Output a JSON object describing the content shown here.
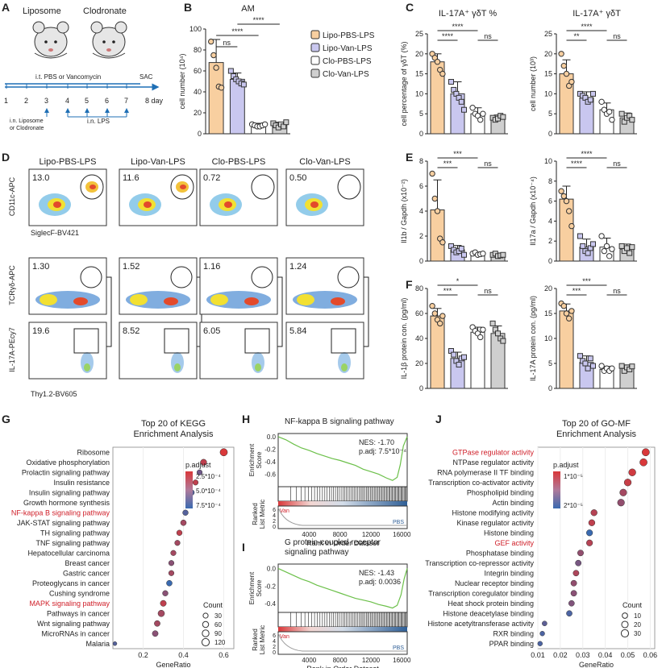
{
  "panel_letters": [
    "A",
    "B",
    "C",
    "D",
    "E",
    "F",
    "G",
    "H",
    "I",
    "J"
  ],
  "panelA": {
    "group1": "Liposome",
    "group2": "Clodronate",
    "treatment": "i.t. PBS or Vancomycin",
    "days": [
      "1",
      "2",
      "3",
      "4",
      "5",
      "6",
      "7",
      "8 day"
    ],
    "sac": "SAC",
    "liposome_step": "i.n. Liposome\nor Clodronate",
    "lps_step": "i.n. LPS"
  },
  "legend": {
    "items": [
      {
        "label": "Lipo-PBS-LPS",
        "color": "#f8cfa0"
      },
      {
        "label": "Lipo-Van-LPS",
        "color": "#c9c7ef"
      },
      {
        "label": "Clo-PBS-LPS",
        "color": "#ffffff"
      },
      {
        "label": "Clo-Van-LPS",
        "color": "#cfcfcf"
      }
    ]
  },
  "chart_data": [
    {
      "id": "B",
      "type": "bar",
      "title": "AM",
      "ylabel": "cell number (10⁴)",
      "ylim": [
        0,
        100
      ],
      "ticks": [
        0,
        20,
        40,
        60,
        80,
        100
      ],
      "categories": [
        "Lipo-PBS-LPS",
        "Lipo-Van-LPS",
        "Clo-PBS-LPS",
        "Clo-Van-LPS"
      ],
      "values": [
        68,
        52,
        8,
        8
      ],
      "errors": [
        22,
        6,
        2,
        3
      ],
      "points": [
        [
          88,
          75,
          63,
          45,
          44
        ],
        [
          60,
          55,
          52,
          50,
          48,
          47
        ],
        [
          9,
          8,
          7,
          7,
          8,
          9
        ],
        [
          10,
          8,
          6,
          9,
          7,
          11
        ]
      ],
      "signif": [
        {
          "a": 0,
          "b": 1,
          "label": "ns"
        },
        {
          "a": 0,
          "b": 2,
          "label": "****"
        },
        {
          "a": 1,
          "b": 3,
          "label": "****"
        }
      ]
    },
    {
      "id": "C1",
      "type": "bar",
      "title": "IL-17A⁺ γδT %",
      "ylabel": "cell percentage of γδT (%)",
      "ylim": [
        0,
        25
      ],
      "ticks": [
        0,
        5,
        10,
        15,
        20,
        25
      ],
      "categories": [
        "Lipo-PBS-LPS",
        "Lipo-Van-LPS",
        "Clo-PBS-LPS",
        "Clo-Van-LPS"
      ],
      "values": [
        18,
        10,
        5,
        4
      ],
      "errors": [
        2,
        3,
        1.5,
        0.7
      ],
      "points": [
        [
          20,
          19,
          18,
          16,
          15
        ],
        [
          13,
          11,
          10,
          9,
          8,
          6
        ],
        [
          6.5,
          5,
          4.5,
          3.5,
          5
        ],
        [
          4,
          3.5,
          3.8,
          4.5,
          4.2
        ]
      ],
      "signif": [
        {
          "a": 0,
          "b": 1,
          "label": "****"
        },
        {
          "a": 0,
          "b": 2,
          "label": "****"
        },
        {
          "a": 2,
          "b": 3,
          "label": "ns"
        }
      ]
    },
    {
      "id": "C2",
      "type": "bar",
      "title": "IL-17A⁺ γδT",
      "ylabel": "cell number (10³)",
      "ylim": [
        0,
        25
      ],
      "ticks": [
        0,
        5,
        10,
        15,
        20,
        25
      ],
      "categories": [
        "Lipo-PBS-LPS",
        "Lipo-Van-LPS",
        "Clo-PBS-LPS",
        "Clo-Van-LPS"
      ],
      "values": [
        15,
        9,
        6,
        4
      ],
      "errors": [
        3.5,
        1.5,
        1.7,
        1.2
      ],
      "points": [
        [
          20,
          17,
          15,
          12,
          13
        ],
        [
          10,
          9.5,
          9,
          8,
          8.5,
          10
        ],
        [
          8,
          6,
          5,
          5.5,
          3.5
        ],
        [
          5,
          3,
          4,
          4.5,
          3.5
        ]
      ],
      "signif": [
        {
          "a": 0,
          "b": 1,
          "label": "**"
        },
        {
          "a": 0,
          "b": 2,
          "label": "****"
        },
        {
          "a": 2,
          "b": 3,
          "label": "ns"
        }
      ]
    },
    {
      "id": "E1",
      "type": "bar",
      "title": "",
      "ylabel": "Il1b / Gapdh (x10⁻²)",
      "ylim": [
        0,
        8
      ],
      "ticks": [
        0,
        2,
        4,
        6,
        8
      ],
      "categories": [
        "Lipo-PBS-LPS",
        "Lipo-Van-LPS",
        "Clo-PBS-LPS",
        "Clo-Van-LPS"
      ],
      "values": [
        4.1,
        0.9,
        0.6,
        0.5
      ],
      "errors": [
        2.4,
        0.35,
        0.12,
        0.15
      ],
      "points": [
        [
          7,
          5,
          4,
          1.8,
          1.5
        ],
        [
          1.2,
          0.9,
          0.7,
          0.8,
          1,
          0.5
        ],
        [
          0.6,
          0.7,
          0.5,
          0.55,
          0.6
        ],
        [
          0.5,
          0.6,
          0.4,
          0.45,
          0.5
        ]
      ],
      "signif": [
        {
          "a": 0,
          "b": 1,
          "label": "***"
        },
        {
          "a": 0,
          "b": 2,
          "label": "***"
        },
        {
          "a": 2,
          "b": 3,
          "label": "ns"
        }
      ]
    },
    {
      "id": "E2",
      "type": "bar",
      "title": "",
      "ylabel": "Il17a / Gapdh (x10⁻⁴)",
      "ylim": [
        0,
        10
      ],
      "ticks": [
        0,
        2,
        4,
        6,
        8,
        10
      ],
      "categories": [
        "Lipo-PBS-LPS",
        "Lipo-Van-LPS",
        "Clo-PBS-LPS",
        "Clo-Van-LPS"
      ],
      "values": [
        6.2,
        1.4,
        1.4,
        1.2
      ],
      "errors": [
        1.3,
        0.8,
        0.9,
        0.5
      ],
      "points": [
        [
          7,
          6.5,
          6,
          5,
          3.5
        ],
        [
          2.5,
          1.5,
          1,
          0.8,
          1.3,
          1.7
        ],
        [
          2.5,
          1,
          1.5,
          0.5,
          1.2
        ],
        [
          1.5,
          1,
          1.3,
          0.8,
          1.4
        ]
      ],
      "signif": [
        {
          "a": 0,
          "b": 1,
          "label": "****"
        },
        {
          "a": 0,
          "b": 2,
          "label": "****"
        },
        {
          "a": 2,
          "b": 3,
          "label": "ns"
        }
      ]
    },
    {
      "id": "F1",
      "type": "bar",
      "title": "",
      "ylabel": "IL-1β protein con. (pg/ml)",
      "ylim": [
        0,
        80
      ],
      "ticks": [
        0,
        20,
        40,
        60,
        80
      ],
      "categories": [
        "Lipo-PBS-LPS",
        "Lipo-Van-LPS",
        "Clo-PBS-LPS",
        "Clo-Van-LPS"
      ],
      "values": [
        58,
        24,
        45,
        44
      ],
      "errors": [
        6,
        5,
        4,
        6
      ],
      "points": [
        [
          66,
          60,
          55,
          52,
          58
        ],
        [
          30,
          27,
          22,
          19,
          24,
          25
        ],
        [
          49,
          46,
          44,
          41,
          47
        ],
        [
          52,
          47,
          44,
          40,
          38
        ]
      ],
      "signif": [
        {
          "a": 0,
          "b": 1,
          "label": "***"
        },
        {
          "a": 0,
          "b": 2,
          "label": "*"
        },
        {
          "a": 2,
          "b": 3,
          "label": "ns"
        }
      ]
    },
    {
      "id": "F2",
      "type": "bar",
      "title": "",
      "ylabel": "IL-17A protein con. (pg/ml)",
      "ylim": [
        0,
        20
      ],
      "ticks": [
        0,
        5,
        10,
        15,
        20
      ],
      "categories": [
        "Lipo-PBS-LPS",
        "Lipo-Van-LPS",
        "Clo-PBS-LPS",
        "Clo-Van-LPS"
      ],
      "values": [
        15.5,
        5.2,
        3.8,
        4
      ],
      "errors": [
        1.4,
        1.3,
        0.6,
        0.7
      ],
      "points": [
        [
          17,
          16.5,
          15,
          14,
          15.5
        ],
        [
          6.5,
          5.5,
          5,
          4,
          6,
          4.5
        ],
        [
          4.5,
          3.5,
          4,
          3.5,
          4
        ],
        [
          4.5,
          3.5,
          4.2,
          3.8,
          4.4
        ]
      ],
      "signif": [
        {
          "a": 0,
          "b": 1,
          "label": "***"
        },
        {
          "a": 0,
          "b": 2,
          "label": "***"
        },
        {
          "a": 2,
          "b": 3,
          "label": "ns"
        }
      ]
    },
    {
      "id": "G",
      "type": "scatter",
      "title": "Top 20 of KEGG\nEnrichment Analysis",
      "xlabel": "GeneRatio",
      "xlim": [
        0.05,
        0.65
      ],
      "xticks": [
        0.2,
        0.4,
        0.6
      ],
      "legend_title": "p.adjust",
      "color_ticks": [
        "2.5*10⁻⁴",
        "5.0*10⁻⁴",
        "7.5*10⁻⁴"
      ],
      "size_title": "Count",
      "size_values": [
        30,
        60,
        90,
        120
      ],
      "terms": [
        "Ribosome",
        "Oxidative phosphorylation",
        "Prolactin signaling pathway",
        "Insulin resistance",
        "Insulin signaling pathway",
        "Growth hormone synthesis",
        "NF-kappa B signaling pathway",
        "JAK-STAT signaling pathway",
        "TH signaling pathway",
        "TNF signaling pathway",
        "Hepatocellular carcinoma",
        "Breast cancer",
        "Gastric cancer",
        "Proteoglycans in cancer",
        "Cushing syndrome",
        "MAPK signaling pathway",
        "Pathways in cancer",
        "Wnt signaling pathway",
        "MicroRNAs in cancer",
        "Malaria"
      ],
      "highlight": [
        "NF-kappa B signaling pathway",
        "MAPK signaling pathway"
      ],
      "gene_ratio": [
        0.6,
        0.5,
        0.48,
        0.46,
        0.44,
        0.43,
        0.41,
        0.4,
        0.38,
        0.37,
        0.35,
        0.34,
        0.34,
        0.33,
        0.31,
        0.3,
        0.29,
        0.27,
        0.26,
        0.06
      ],
      "count": [
        120,
        70,
        40,
        40,
        50,
        45,
        45,
        50,
        45,
        40,
        40,
        40,
        40,
        50,
        45,
        60,
        80,
        55,
        55,
        10
      ],
      "p_adjust": [
        0.0001,
        0.0002,
        0.0005,
        0.0002,
        0.0006,
        0.0003,
        0.0006,
        0.0003,
        0.0002,
        0.0003,
        0.0003,
        0.0004,
        0.0003,
        0.0007,
        0.0004,
        0.0002,
        0.0003,
        0.0003,
        0.0004,
        0.0006
      ]
    },
    {
      "id": "J",
      "type": "scatter",
      "title": "Top 20 of GO-MF\nEnrichment Analysis",
      "xlabel": "GeneRatio",
      "xlim": [
        0.01,
        0.062
      ],
      "xticks": [
        0.01,
        0.02,
        0.03,
        0.04,
        0.05,
        0.06
      ],
      "legend_title": "p.adjust",
      "color_ticks": [
        "1*10⁻⁵",
        "2*10⁻⁵"
      ],
      "size_title": "Count",
      "size_values": [
        10,
        20,
        30
      ],
      "terms": [
        "GTPase regulator activity",
        "NTPase regulator activity",
        "RNA polymerase II TF binding",
        "Transcription co-activator activity",
        "Phospholipid binding",
        "Actin binding",
        "Histone modifying activity",
        "Kinase regulator activity",
        "Histone binding",
        "GEF activity",
        "Phosphatase binding",
        "Transcription co-repressor activity",
        "Integrin binding",
        "Nuclear receptor binding",
        "Transcription coregulator binding",
        "Heat shock protein binding",
        "Histone deacetylase binding",
        "Histone acetyltransferase activity",
        "RXR binding",
        "PPAR binding"
      ],
      "highlight": [
        "GTPase regulator activity",
        "GEF activity"
      ],
      "gene_ratio": [
        0.058,
        0.057,
        0.052,
        0.05,
        0.048,
        0.047,
        0.035,
        0.034,
        0.033,
        0.033,
        0.029,
        0.028,
        0.027,
        0.026,
        0.026,
        0.025,
        0.024,
        0.013,
        0.012,
        0.011
      ],
      "count": [
        30,
        30,
        27,
        26,
        25,
        25,
        18,
        18,
        17,
        17,
        15,
        14,
        14,
        14,
        14,
        13,
        13,
        7,
        6,
        6
      ],
      "p_adjust": [
        4e-06,
        4e-06,
        5e-06,
        6e-06,
        1e-05,
        1.2e-05,
        8e-06,
        7e-06,
        2.2e-05,
        8e-06,
        1.2e-05,
        1.5e-05,
        9e-06,
        1.2e-05,
        1.3e-05,
        1.4e-05,
        2e-05,
        1.8e-05,
        2e-05,
        2e-05
      ]
    },
    {
      "id": "H",
      "type": "line",
      "title": "NF-kappa B signaling pathway",
      "ylabel": "Enrichment\nScore",
      "ylim": [
        -0.8,
        0.05
      ],
      "yticks": [
        "0.0",
        "-0.2",
        "-0.4",
        "-0.6"
      ],
      "xlabel": "Rank in Order Dataset",
      "xticks": [
        "4000",
        "8000",
        "12000",
        "16000"
      ],
      "nes": "NES: -1.70",
      "padj": "p.adj: 7.5*10⁻⁴",
      "rank_label": "Ranked\nList Metric",
      "rank_ticks": [
        "6",
        "4",
        "2",
        "0"
      ],
      "left_tag": "Van",
      "right_tag": "PBS",
      "curve": [
        [
          0,
          0
        ],
        [
          1000,
          -0.05
        ],
        [
          2000,
          -0.12
        ],
        [
          3000,
          -0.18
        ],
        [
          4000,
          -0.22
        ],
        [
          5000,
          -0.27
        ],
        [
          6000,
          -0.31
        ],
        [
          7000,
          -0.35
        ],
        [
          8000,
          -0.38
        ],
        [
          9000,
          -0.42
        ],
        [
          10000,
          -0.46
        ],
        [
          11000,
          -0.52
        ],
        [
          12000,
          -0.56
        ],
        [
          13000,
          -0.6
        ],
        [
          14000,
          -0.66
        ],
        [
          14800,
          -0.7
        ],
        [
          15400,
          -0.65
        ],
        [
          15800,
          -0.45
        ],
        [
          16200,
          -0.15
        ],
        [
          16700,
          0
        ]
      ]
    },
    {
      "id": "I",
      "type": "line",
      "title": "G protein-coupled receptor\nsignaling pathway",
      "ylabel": "Enrichment\nScore",
      "ylim": [
        -0.5,
        0.05
      ],
      "yticks": [
        "0.0",
        "-0.2",
        "-0.4"
      ],
      "xlabel": "Rank in Order Dataset",
      "xticks": [
        "4000",
        "8000",
        "12000",
        "16000"
      ],
      "nes": "NES: -1.43",
      "padj": "p.adj: 0.0036",
      "rank_label": "Ranked\nList Metric",
      "rank_ticks": [
        "6",
        "4",
        "2",
        "0"
      ],
      "left_tag": "Van",
      "right_tag": "PBS",
      "curve": [
        [
          0,
          0
        ],
        [
          1000,
          -0.04
        ],
        [
          2000,
          -0.08
        ],
        [
          3000,
          -0.12
        ],
        [
          4000,
          -0.15
        ],
        [
          5000,
          -0.19
        ],
        [
          6000,
          -0.22
        ],
        [
          7000,
          -0.25
        ],
        [
          8000,
          -0.28
        ],
        [
          9000,
          -0.31
        ],
        [
          10000,
          -0.34
        ],
        [
          11000,
          -0.36
        ],
        [
          12000,
          -0.38
        ],
        [
          13000,
          -0.41
        ],
        [
          14000,
          -0.43
        ],
        [
          14800,
          -0.45
        ],
        [
          15400,
          -0.42
        ],
        [
          15900,
          -0.3
        ],
        [
          16300,
          -0.12
        ],
        [
          16700,
          0
        ]
      ]
    }
  ],
  "flow": {
    "columns": [
      "Lipo-PBS-LPS",
      "Lipo-Van-LPS",
      "Clo-PBS-LPS",
      "Clo-Van-LPS"
    ],
    "row1_values": [
      "13.0",
      "11.6",
      "0.72",
      "0.50"
    ],
    "row2_values": [
      "1.30",
      "1.52",
      "1.16",
      "1.24"
    ],
    "row3_values": [
      "19.6",
      "8.52",
      "6.05",
      "5.84"
    ],
    "row1_y": "CD11c-APC",
    "row1_x": "SiglecF-BV421",
    "row2_y": "TCRγδ-APC",
    "row3_y": "IL-17A-PEcy7",
    "row3_x": "Thy1.2-BV605"
  }
}
